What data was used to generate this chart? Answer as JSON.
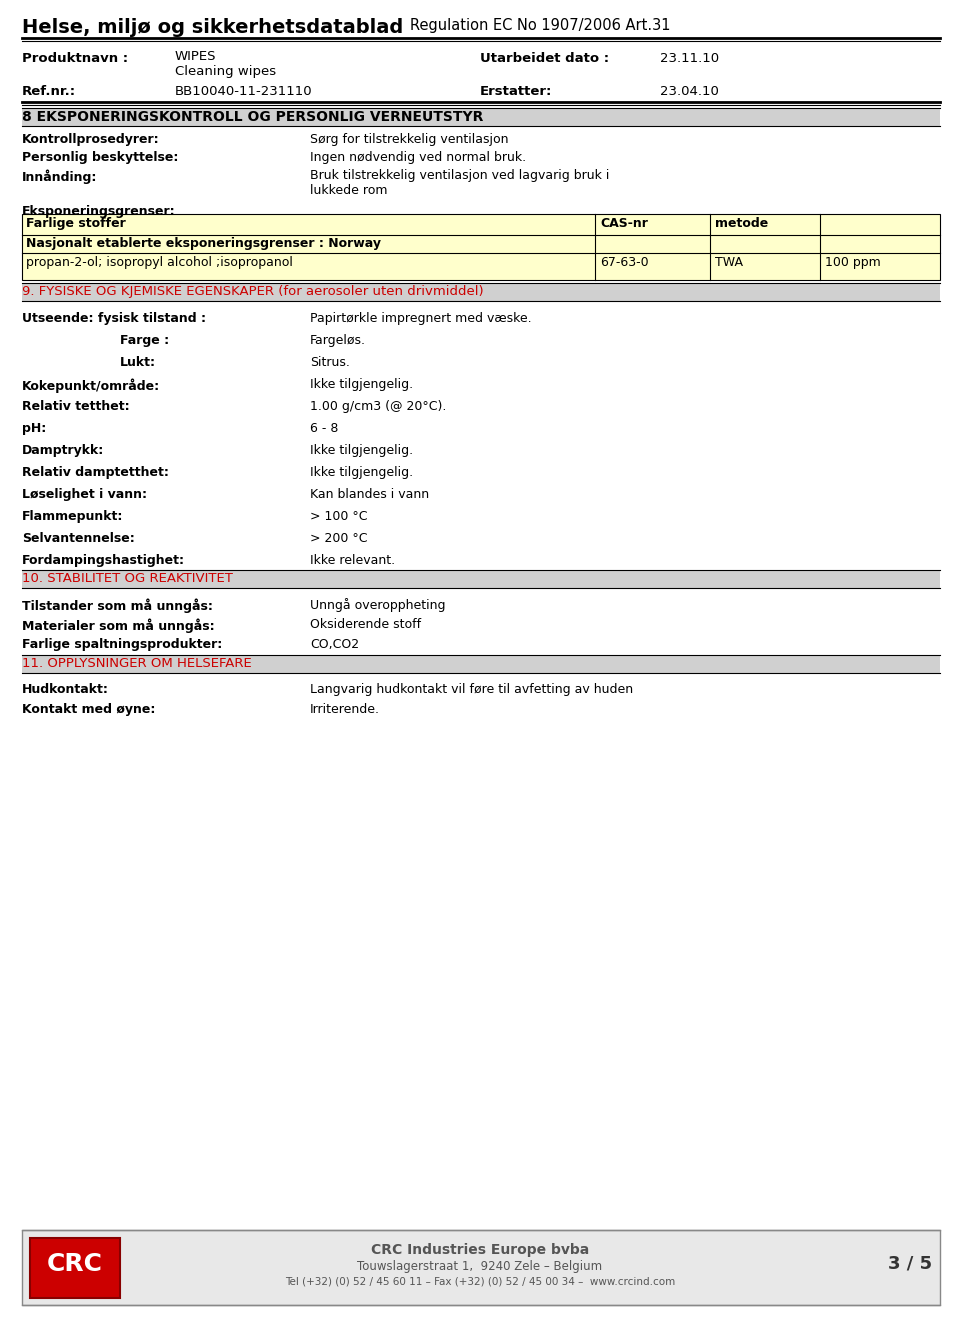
{
  "title_left": "Helse, miljø og sikkerhetsdatablad",
  "title_right": "Regulation EC No 1907/2006 Art.31",
  "product_label": "Produktnavn :",
  "date_label": "Utarbeidet dato :",
  "date_value": "23.11.10",
  "ref_label": "Ref.nr.:",
  "ref_value": "BB10040-11-231110",
  "replaced_label": "Erstatter:",
  "replaced_value": "23.04.10",
  "section8_title": "8 EKSPONERINGSKONTROLL OG PERSONLIG VERNEUTSTYR",
  "kontroll_label": "Kontrollprosedyrer:",
  "kontroll_value": "Sørg for tilstrekkelig ventilasjon",
  "personlig_label": "Personlig beskyttelse:",
  "personlig_value": "Ingen nødvendig ved normal bruk.",
  "innanding_label": "Innånding:",
  "innanding_value1": "Bruk tilstrekkelig ventilasjon ved lagvarig bruk i",
  "innanding_value2": "lukkede rom",
  "eksponering_label": "Eksponeringsgrenser:",
  "table_header0": "Farlige stoffer",
  "table_header1": "CAS-nr",
  "table_header2": "metode",
  "table_row1_0": "Nasjonalt etablerte eksponeringsgrenser : Norway",
  "table_row2_0": "propan-2-ol; isopropyl alcohol ;isopropanol",
  "table_row2_1": "67-63-0",
  "table_row2_2": "TWA",
  "table_row2_3": "100 ppm",
  "table_bg": "#ffffcc",
  "section9_title": "9. FYSISKE OG KJEMISKE EGENSKAPER (for aerosoler uten drivmiddel)",
  "utseende_label": "Utseende: fysisk tilstand :",
  "utseende_value": "Papirtørkle impregnert med væske.",
  "farge_label": "Farge :",
  "farge_value": "Fargeløs.",
  "lukt_label": "Lukt:",
  "lukt_value": "Sitrus.",
  "kokepunkt_label": "Kokepunkt/område:",
  "kokepunkt_value": "Ikke tilgjengelig.",
  "relativ_label": "Relativ tetthet:",
  "relativ_value": "1.00 g/cm3 (@ 20°C).",
  "ph_label": "pH:",
  "ph_value": "6 - 8",
  "damptrykk_label": "Damptrykk:",
  "damptrykk_value": "Ikke tilgjengelig.",
  "relativ_damp_label": "Relativ damptetthet:",
  "relativ_damp_value": "Ikke tilgjengelig.",
  "loselighet_label": "Løselighet i vann:",
  "loselighet_value": "Kan blandes i vann",
  "flammepunkt_label": "Flammepunkt:",
  "flammepunkt_value": "> 100 °C",
  "selvantennelse_label": "Selvantennelse:",
  "selvantennelse_value": "> 200 °C",
  "fordamping_label": "Fordampingshastighet:",
  "fordamping_value": "Ikke relevant.",
  "section10_title": "10. STABILITET OG REAKTIVITET",
  "tilstander_label": "Tilstander som må unngås:",
  "tilstander_value": "Unngå overoppheting",
  "materialer_label": "Materialer som må unngås:",
  "materialer_value": "Oksiderende stoff",
  "farlige_label": "Farlige spaltningsprodukter:",
  "farlige_value": "CO,CO2",
  "section11_title": "11. OPPLYSNINGER OM HELSEFARE",
  "hudkontakt_label": "Hudkontakt:",
  "hudkontakt_value": "Langvarig hudkontakt vil føre til avfetting av huden",
  "kontakt_label": "Kontakt med øyne:",
  "kontakt_value": "Irriterende.",
  "footer_company": "CRC Industries Europe bvba",
  "footer_address": "Touwslagerstraat 1,  9240 Zele – Belgium",
  "footer_tel": "Tel (+32) (0) 52 / 45 60 11 – Fax (+32) (0) 52 / 45 00 34 –  www.crcind.com",
  "footer_page": "3 / 5",
  "bg_color": "#ffffff",
  "section_bg": "#d0d0d0",
  "red_color": "#cc0000",
  "black_color": "#000000"
}
